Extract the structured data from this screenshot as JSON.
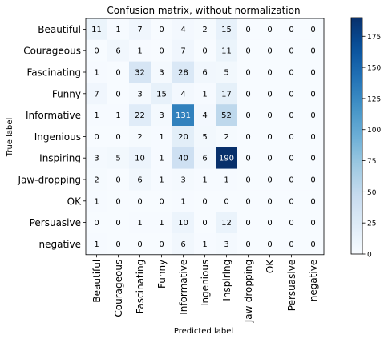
{
  "chart_data": {
    "type": "heatmap",
    "title": "Confusion matrix, without normalization",
    "xlabel": "Predicted label",
    "ylabel": "True label",
    "labels": [
      "Beautiful",
      "Courageous",
      "Fascinating",
      "Funny",
      "Informative",
      "Ingenious",
      "Inspiring",
      "Jaw-dropping",
      "OK",
      "Persuasive",
      "negative"
    ],
    "matrix": [
      [
        11,
        1,
        7,
        0,
        4,
        2,
        15,
        0,
        0,
        0,
        0
      ],
      [
        0,
        6,
        1,
        0,
        7,
        0,
        11,
        0,
        0,
        0,
        0
      ],
      [
        1,
        0,
        32,
        3,
        28,
        6,
        5,
        0,
        0,
        0,
        0
      ],
      [
        7,
        0,
        3,
        15,
        4,
        1,
        17,
        0,
        0,
        0,
        0
      ],
      [
        1,
        1,
        22,
        3,
        131,
        4,
        52,
        0,
        0,
        0,
        0
      ],
      [
        0,
        0,
        2,
        1,
        20,
        5,
        2,
        0,
        0,
        0,
        0
      ],
      [
        3,
        5,
        10,
        1,
        40,
        6,
        190,
        0,
        0,
        0,
        0
      ],
      [
        2,
        0,
        6,
        1,
        3,
        1,
        1,
        0,
        0,
        0,
        0
      ],
      [
        1,
        0,
        0,
        0,
        1,
        0,
        0,
        0,
        0,
        0,
        0
      ],
      [
        0,
        0,
        1,
        1,
        10,
        0,
        12,
        0,
        0,
        0,
        0
      ],
      [
        1,
        0,
        0,
        0,
        6,
        1,
        3,
        0,
        0,
        0,
        0
      ]
    ],
    "colorbar": {
      "colormap": "Blues",
      "range": [
        0,
        190
      ],
      "ticks": [
        0,
        25,
        50,
        75,
        100,
        125,
        150,
        175
      ]
    }
  }
}
